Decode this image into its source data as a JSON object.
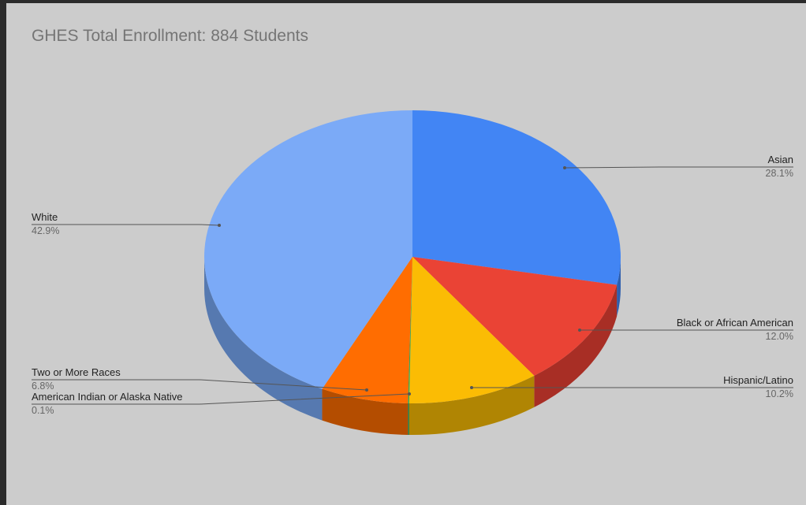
{
  "chart_data": {
    "type": "pie",
    "style": "3d",
    "title": "GHES Total Enrollment: 884 Students",
    "slices": [
      {
        "label": "Asian",
        "value": 28.1,
        "value_label": "28.1%",
        "color": "#4285f4",
        "side_color": "#2f5fae"
      },
      {
        "label": "Black or African American",
        "value": 12.0,
        "value_label": "12.0%",
        "color": "#ea4335",
        "side_color": "#a82e25"
      },
      {
        "label": "Hispanic/Latino",
        "value": 10.2,
        "value_label": "10.2%",
        "color": "#fbbc04",
        "side_color": "#b08503"
      },
      {
        "label": "American Indian or Alaska Native",
        "value": 0.1,
        "value_label": "0.1%",
        "color": "#34a853",
        "side_color": "#25773b"
      },
      {
        "label": "Two or More Races",
        "value": 6.8,
        "value_label": "6.8%",
        "color": "#ff6d01",
        "side_color": "#b44d00"
      },
      {
        "label": "White",
        "value": 42.9,
        "value_label": "42.9%",
        "color": "#7baaf7",
        "side_color": "#5679b0"
      }
    ],
    "start_angle_deg": 0,
    "direction": "clockwise",
    "legend": "none (labeled callouts)"
  }
}
